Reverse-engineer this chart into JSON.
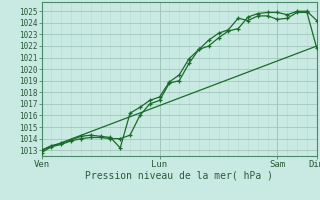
{
  "xlabel": "Pression niveau de la mer( hPa )",
  "background_color": "#c8eae2",
  "grid_major_color": "#9bbfb5",
  "grid_minor_color": "#b8d8d0",
  "line_color": "#1a6b2a",
  "ylim": [
    1012.5,
    1025.8
  ],
  "yticks": [
    1013,
    1014,
    1015,
    1016,
    1017,
    1018,
    1019,
    1020,
    1021,
    1022,
    1023,
    1024,
    1025
  ],
  "xtick_labels": [
    "Ven",
    "Lun",
    "Sam",
    "Dim"
  ],
  "xtick_positions": [
    0,
    36,
    72,
    84
  ],
  "x_total": 84,
  "series1_x": [
    0,
    3,
    6,
    9,
    12,
    15,
    18,
    21,
    24,
    27,
    30,
    33,
    36,
    39,
    42,
    45,
    48,
    51,
    54,
    57,
    60,
    63,
    66,
    69,
    72,
    75,
    78,
    81,
    84
  ],
  "series1_y": [
    1012.8,
    1013.3,
    1013.5,
    1013.8,
    1014.0,
    1014.1,
    1014.1,
    1014.0,
    1014.0,
    1014.3,
    1016.0,
    1017.0,
    1017.3,
    1018.8,
    1019.0,
    1020.5,
    1021.7,
    1022.0,
    1022.7,
    1023.3,
    1023.5,
    1024.5,
    1024.8,
    1024.9,
    1024.9,
    1024.7,
    1025.0,
    1025.0,
    1024.2
  ],
  "series2_x": [
    0,
    3,
    6,
    9,
    12,
    15,
    18,
    21,
    24,
    27,
    30,
    33,
    36,
    39,
    42,
    45,
    48,
    51,
    54,
    57,
    60,
    63,
    66,
    69,
    72,
    75,
    78,
    81,
    84
  ],
  "series2_y": [
    1013.0,
    1013.4,
    1013.6,
    1013.9,
    1014.2,
    1014.3,
    1014.2,
    1014.1,
    1013.2,
    1016.2,
    1016.7,
    1017.3,
    1017.6,
    1018.9,
    1019.5,
    1020.9,
    1021.7,
    1022.5,
    1023.1,
    1023.4,
    1024.4,
    1024.2,
    1024.6,
    1024.6,
    1024.3,
    1024.4,
    1024.9,
    1024.9,
    1021.8
  ],
  "series3_x": [
    0,
    84
  ],
  "series3_y": [
    1013.0,
    1022.0
  ]
}
